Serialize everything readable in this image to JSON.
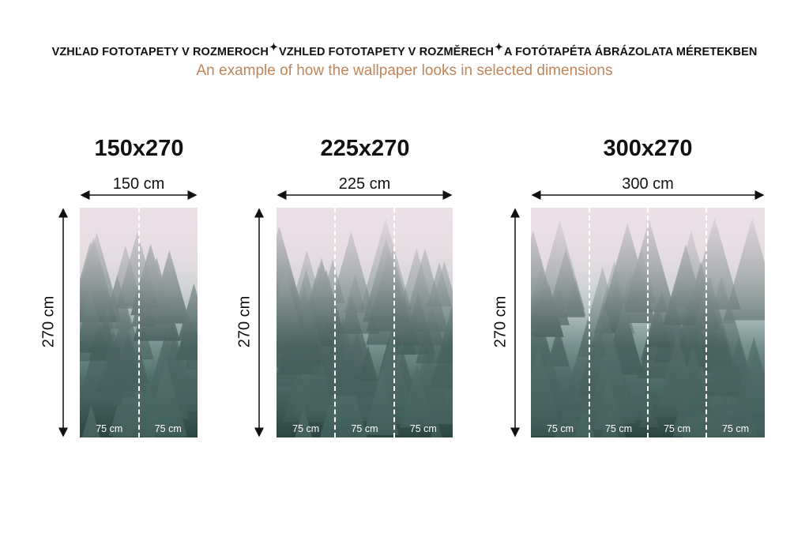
{
  "header": {
    "languages": [
      "VZHĽAD FOTOTAPETY V ROZMEROCH",
      "VZHLED FOTOTAPETY V ROZMĚRECH",
      "A FOTÓTAPÉTA ÁBRÁZOLATA MÉRETEKBEN"
    ],
    "separator_icon": "sparkle-icon",
    "subtitle": "An example of how the wallpaper looks in selected dimensions"
  },
  "colors": {
    "subtitle": "#c0855a"
  },
  "panels": [
    {
      "title": "150x270",
      "width_label": "150 cm",
      "height_label": "270 cm",
      "segments": [
        "75 cm",
        "75 cm"
      ]
    },
    {
      "title": "225x270",
      "width_label": "225 cm",
      "height_label": "270 cm",
      "segments": [
        "75 cm",
        "75 cm",
        "75 cm"
      ]
    },
    {
      "title": "300x270",
      "width_label": "300 cm",
      "height_label": "270 cm",
      "segments": [
        "75 cm",
        "75 cm",
        "75 cm",
        "75 cm"
      ]
    }
  ]
}
